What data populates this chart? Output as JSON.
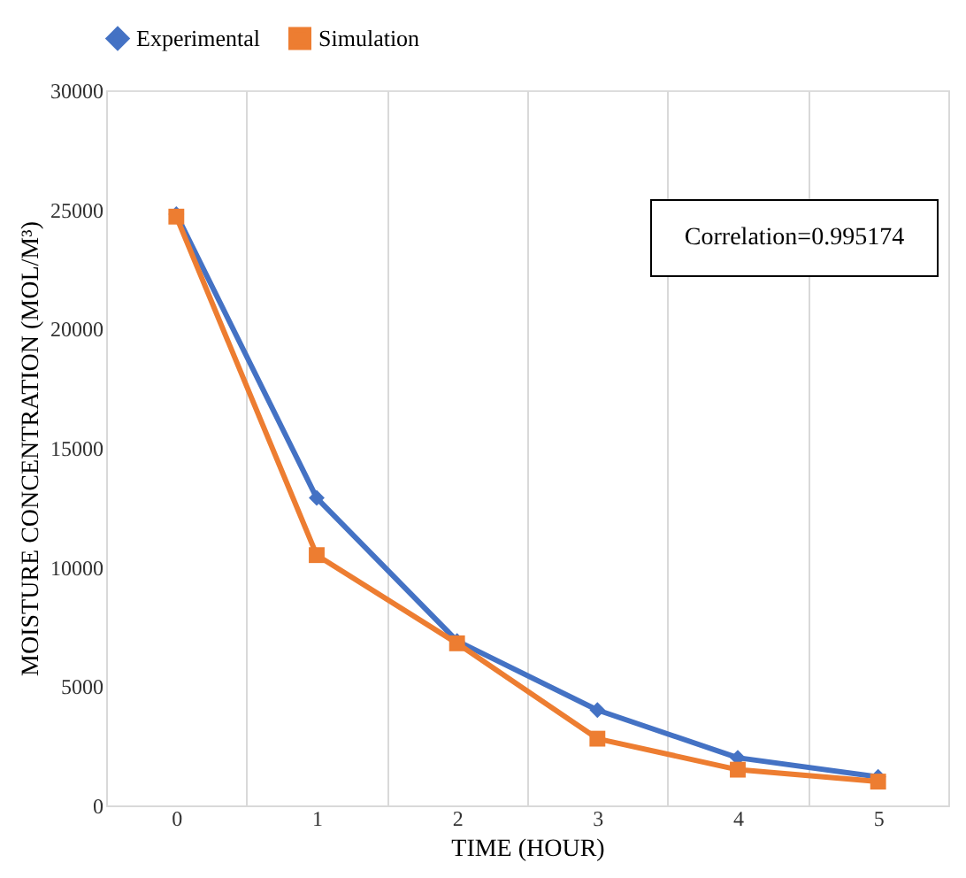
{
  "chart_data": {
    "type": "line",
    "xlabel": "TIME (HOUR)",
    "ylabel": "MOISTURE CONCENTRATION (MOL/M³)",
    "categories": [
      "0",
      "1",
      "2",
      "3",
      "4",
      "5"
    ],
    "series": [
      {
        "name": "Experimental",
        "color": "#4472c4",
        "marker": "diamond",
        "values": [
          24800,
          12900,
          6900,
          4000,
          2000,
          1200
        ]
      },
      {
        "name": "Simulation",
        "color": "#ed7d31",
        "marker": "square",
        "values": [
          24700,
          10500,
          6800,
          2800,
          1500,
          1000
        ]
      }
    ],
    "ylim": [
      0,
      30000
    ],
    "yticks": [
      0,
      5000,
      10000,
      15000,
      20000,
      25000,
      30000
    ],
    "grid": "x",
    "legend": "top",
    "annotations": [
      "Correlation=0.995174"
    ]
  }
}
